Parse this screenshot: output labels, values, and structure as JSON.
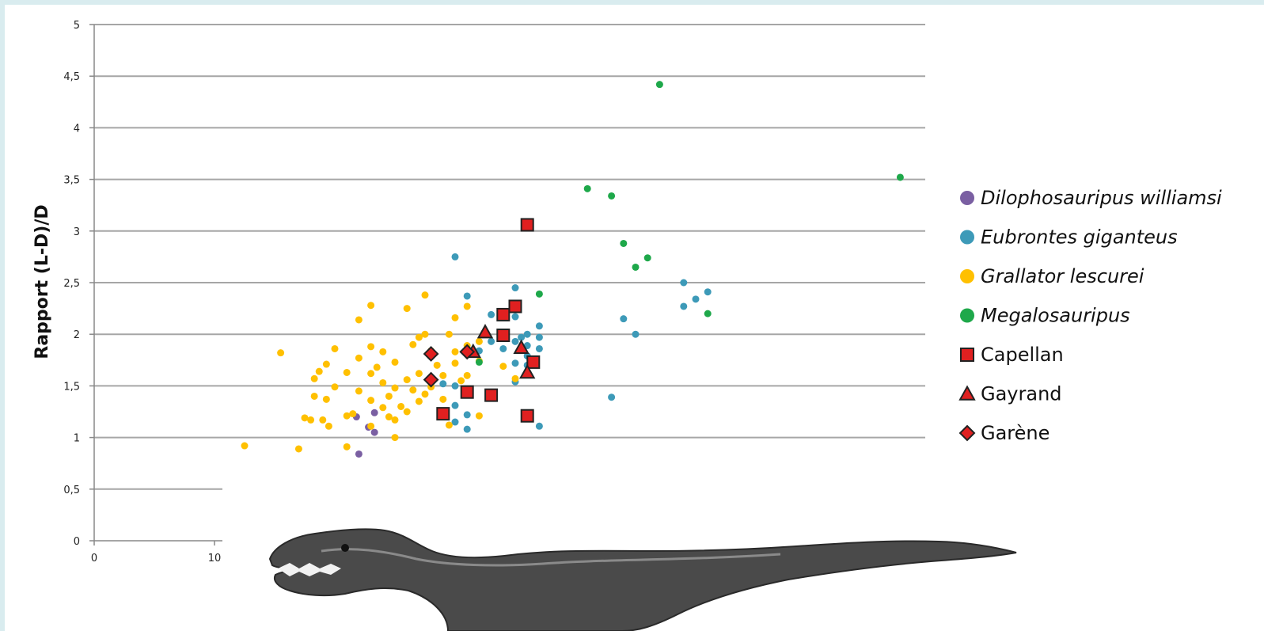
{
  "chart_data": {
    "type": "scatter",
    "title": "",
    "xlabel": "",
    "ylabel": "Rapport (L-D)/D",
    "xlim": [
      0,
      70
    ],
    "ylim": [
      0,
      5
    ],
    "x_ticks": [
      "0",
      "10"
    ],
    "y_ticks": [
      "0",
      "0,5",
      "1",
      "1,5",
      "2",
      "2,5",
      "3",
      "3,5",
      "4",
      "4,5",
      "5"
    ],
    "grid": "horizontal",
    "legend_position": "right",
    "series": [
      {
        "name": "Dilophosauripus williamsi",
        "italic": true,
        "marker": "circle",
        "color": "#7a5fa2",
        "points": [
          [
            22,
            0.84
          ],
          [
            21.8,
            1.2
          ],
          [
            23.3,
            1.05
          ],
          [
            23.3,
            1.24
          ],
          [
            22.8,
            1.1
          ]
        ]
      },
      {
        "name": "Eubrontes giganteus",
        "italic": true,
        "marker": "circle",
        "color": "#3d9ab8",
        "points": [
          [
            30,
            2.75
          ],
          [
            31,
            2.37
          ],
          [
            35,
            2.45
          ],
          [
            35,
            2.17
          ],
          [
            35,
            1.93
          ],
          [
            35.5,
            1.97
          ],
          [
            36,
            2.0
          ],
          [
            36,
            1.89
          ],
          [
            37,
            2.08
          ],
          [
            37,
            1.97
          ],
          [
            37,
            1.86
          ],
          [
            36,
            1.79
          ],
          [
            36,
            1.7
          ],
          [
            35,
            1.72
          ],
          [
            34,
            1.86
          ],
          [
            35,
            1.54
          ],
          [
            33,
            2.19
          ],
          [
            33,
            1.93
          ],
          [
            32,
            1.84
          ],
          [
            29,
            1.52
          ],
          [
            30,
            1.5
          ],
          [
            30,
            1.31
          ],
          [
            31,
            1.22
          ],
          [
            30,
            1.15
          ],
          [
            31,
            1.08
          ],
          [
            37,
            1.11
          ],
          [
            43,
            1.39
          ],
          [
            44,
            2.15
          ],
          [
            45,
            2.0
          ],
          [
            49,
            2.5
          ],
          [
            50,
            2.34
          ],
          [
            51,
            2.41
          ],
          [
            49,
            2.27
          ]
        ]
      },
      {
        "name": "Grallator lescurei",
        "italic": true,
        "marker": "circle",
        "color": "#ffc000",
        "points": [
          [
            12.5,
            0.92
          ],
          [
            15.5,
            1.82
          ],
          [
            17,
            0.89
          ],
          [
            17.5,
            1.19
          ],
          [
            18,
            1.17
          ],
          [
            18.3,
            1.4
          ],
          [
            18.3,
            1.57
          ],
          [
            18.7,
            1.64
          ],
          [
            19,
            1.17
          ],
          [
            19.3,
            1.71
          ],
          [
            19.3,
            1.37
          ],
          [
            19.5,
            1.11
          ],
          [
            20,
            1.86
          ],
          [
            20,
            1.49
          ],
          [
            21,
            1.63
          ],
          [
            21,
            1.21
          ],
          [
            21,
            0.91
          ],
          [
            21.5,
            1.23
          ],
          [
            22,
            1.77
          ],
          [
            22,
            1.45
          ],
          [
            22,
            2.14
          ],
          [
            23,
            2.28
          ],
          [
            23,
            1.88
          ],
          [
            23,
            1.62
          ],
          [
            23,
            1.36
          ],
          [
            23,
            1.11
          ],
          [
            23.5,
            1.68
          ],
          [
            24,
            1.83
          ],
          [
            24,
            1.29
          ],
          [
            24,
            1.53
          ],
          [
            24.5,
            1.2
          ],
          [
            24.5,
            1.4
          ],
          [
            25,
            1.73
          ],
          [
            25,
            1.48
          ],
          [
            25,
            1.0
          ],
          [
            25,
            1.17
          ],
          [
            25.5,
            1.3
          ],
          [
            26,
            1.56
          ],
          [
            26,
            1.25
          ],
          [
            26,
            2.25
          ],
          [
            26.5,
            1.9
          ],
          [
            26.5,
            1.46
          ],
          [
            27,
            1.62
          ],
          [
            27,
            1.35
          ],
          [
            27,
            1.97
          ],
          [
            27.5,
            1.42
          ],
          [
            27.5,
            2.38
          ],
          [
            27.5,
            2.0
          ],
          [
            28,
            1.84
          ],
          [
            28,
            1.53
          ],
          [
            28,
            1.49
          ],
          [
            28.5,
            1.7
          ],
          [
            29,
            1.6
          ],
          [
            29,
            1.25
          ],
          [
            29,
            1.37
          ],
          [
            29.5,
            1.12
          ],
          [
            29.5,
            2.0
          ],
          [
            30,
            1.83
          ],
          [
            30,
            2.16
          ],
          [
            30,
            1.72
          ],
          [
            30.5,
            1.55
          ],
          [
            31,
            1.44
          ],
          [
            31,
            2.27
          ],
          [
            31,
            1.89
          ],
          [
            31,
            1.6
          ],
          [
            32,
            1.21
          ],
          [
            32,
            1.93
          ],
          [
            32,
            1.74
          ],
          [
            34,
            1.69
          ],
          [
            35,
            1.57
          ]
        ]
      },
      {
        "name": "Megalosauripus",
        "italic": true,
        "marker": "circle",
        "color": "#1ea84a",
        "points": [
          [
            32,
            1.73
          ],
          [
            37,
            2.39
          ],
          [
            41,
            3.41
          ],
          [
            43,
            3.34
          ],
          [
            44,
            2.88
          ],
          [
            45,
            2.65
          ],
          [
            46,
            2.74
          ],
          [
            47,
            4.42
          ],
          [
            51,
            2.2
          ],
          [
            67,
            3.52
          ]
        ]
      },
      {
        "name": "Capellan",
        "italic": false,
        "marker": "square",
        "color": "#e02020",
        "points": [
          [
            36,
            3.06
          ],
          [
            34,
            2.19
          ],
          [
            34,
            1.99
          ],
          [
            35,
            2.27
          ],
          [
            36.5,
            1.73
          ],
          [
            31,
            1.44
          ],
          [
            33,
            1.41
          ],
          [
            29,
            1.23
          ],
          [
            36,
            1.21
          ]
        ]
      },
      {
        "name": "Gayrand",
        "italic": false,
        "marker": "triangle",
        "color": "#e02020",
        "points": [
          [
            32.5,
            2.02
          ],
          [
            31.5,
            1.83
          ],
          [
            35.5,
            1.87
          ],
          [
            36,
            1.63
          ]
        ]
      },
      {
        "name": "Garène",
        "italic": false,
        "marker": "diamond",
        "color": "#e02020",
        "points": [
          [
            28,
            1.81
          ],
          [
            31,
            1.83
          ],
          [
            28,
            1.56
          ]
        ]
      }
    ]
  }
}
